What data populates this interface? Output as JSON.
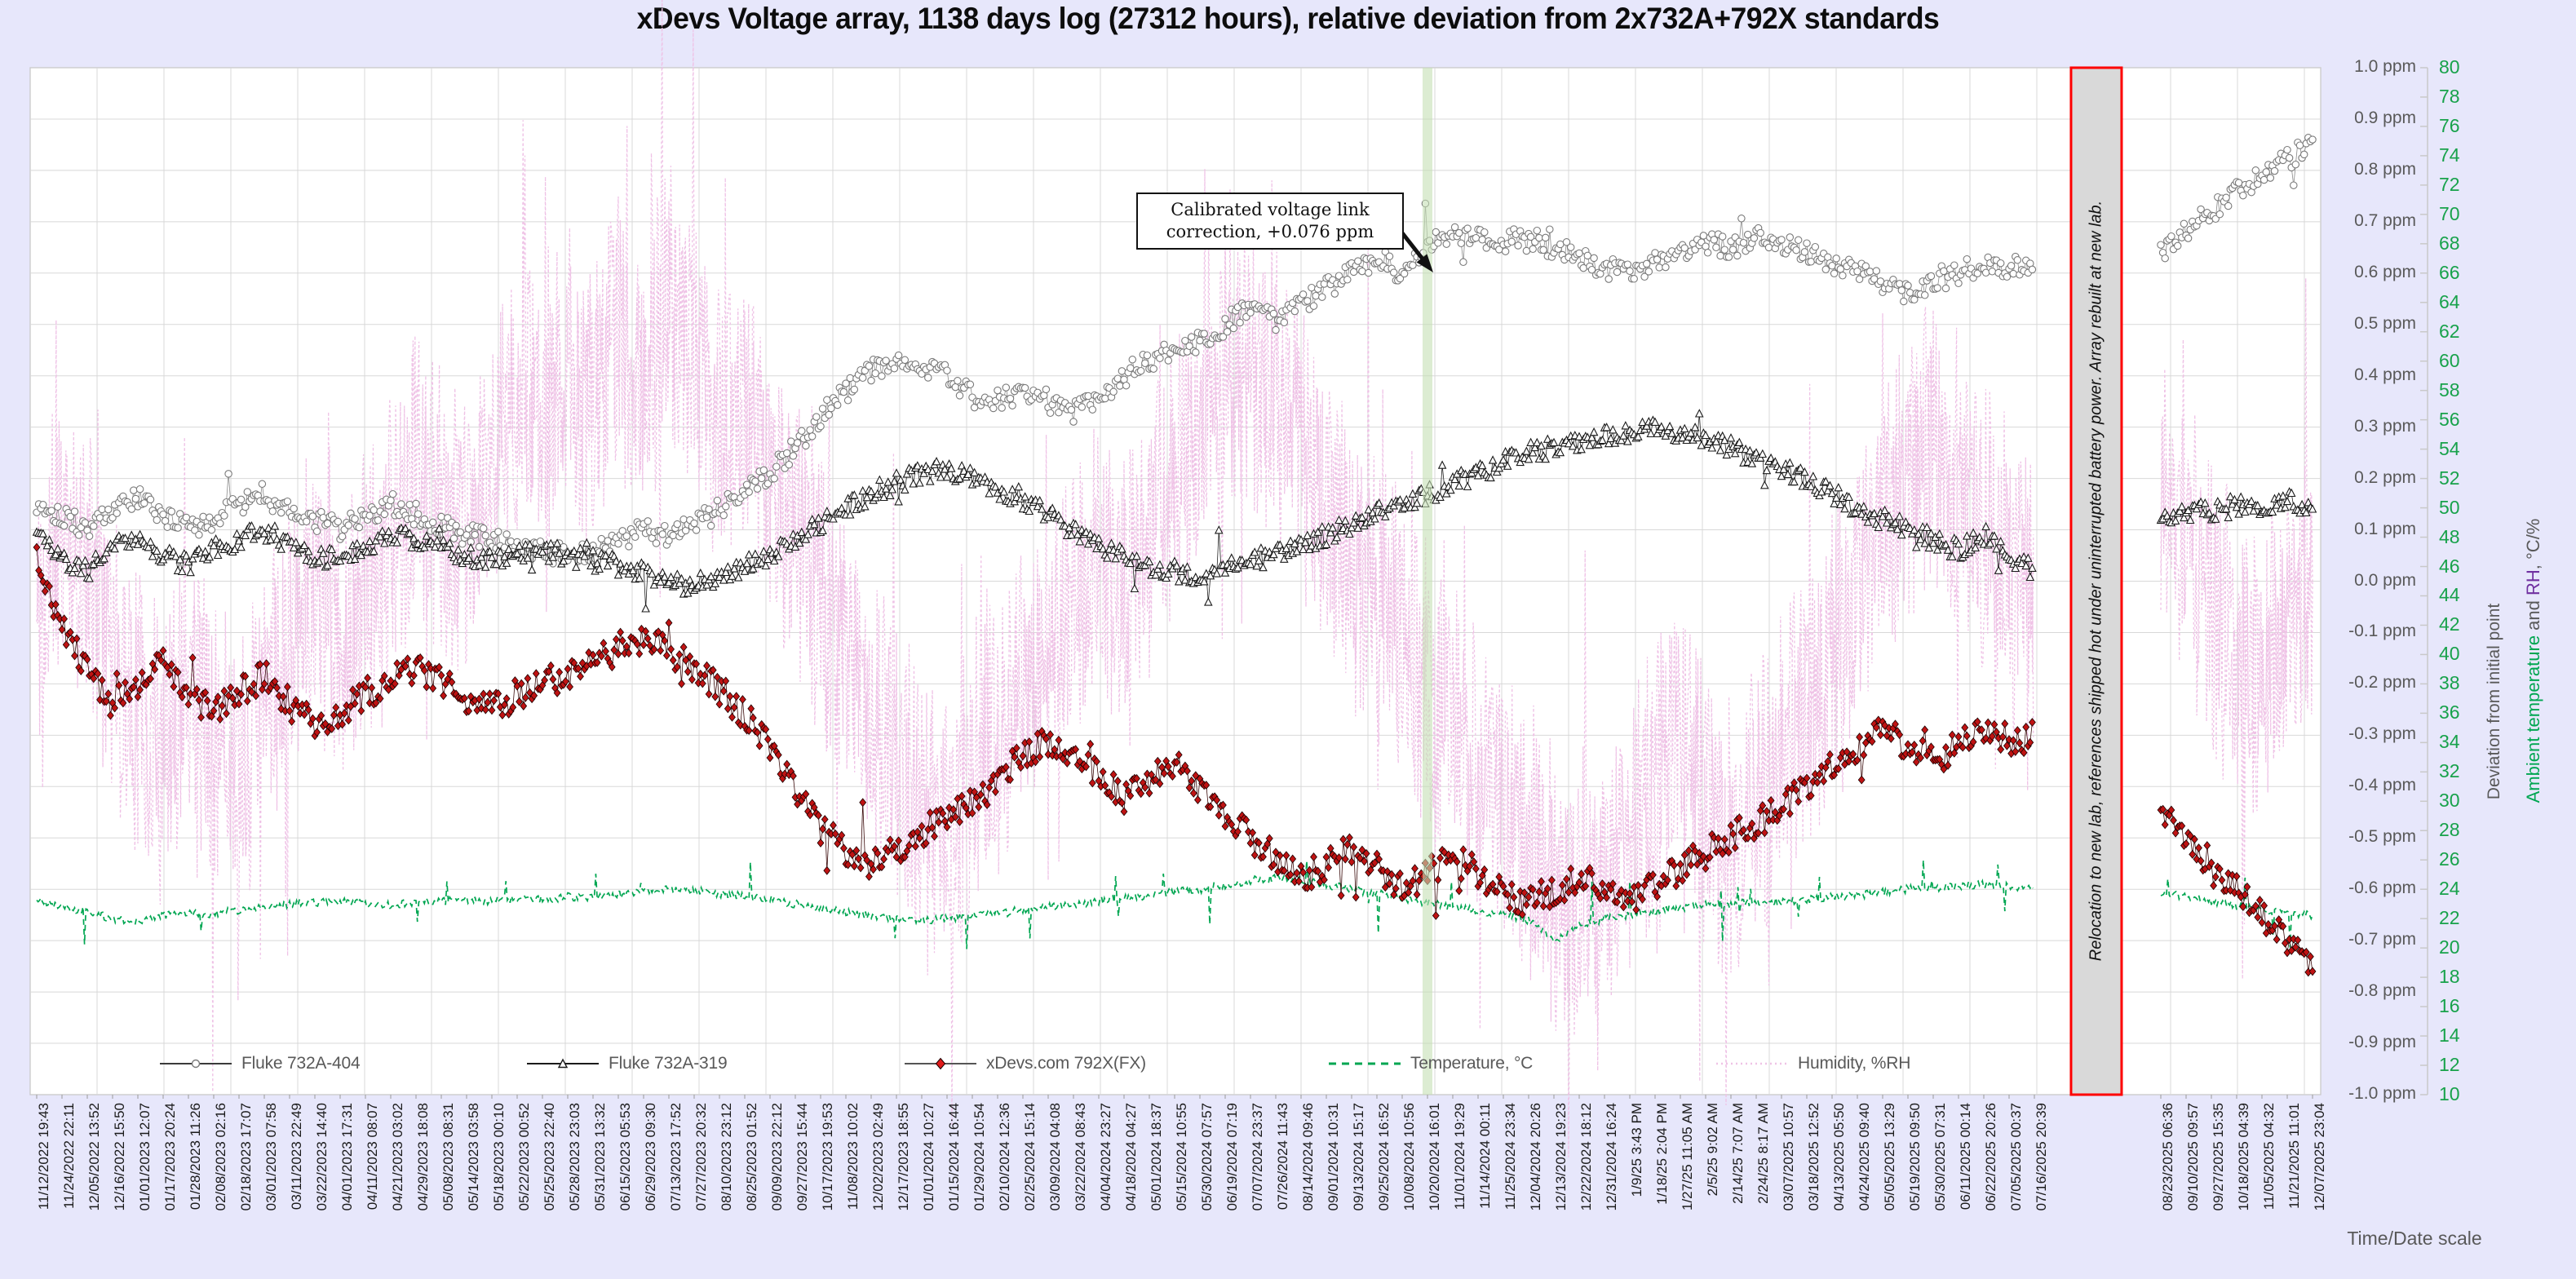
{
  "title": "xDevs Voltage array, 1138 days log (27312 hours), relative deviation from 2x732A+792X standards",
  "colors": {
    "background": "#e7e7fb",
    "plot_background": "#ffffff",
    "gridline": "#d8d8d8",
    "series_404": "#7a7a7a",
    "series_319": "#1a1a1a",
    "series_792x": "#bf1313",
    "temperature": "#00a651",
    "humidity": "#efc2e6",
    "event_band": "#c5e0b4",
    "relocation_band_bg": "#d9d9d9",
    "relocation_band_border": "#fe0000",
    "axis_text": "#595959",
    "temp_axis_text": "#18a24b",
    "rh_title": "#7030a0"
  },
  "right_axis": {
    "ppm_labels": [
      "1.0 ppm",
      "0.9 ppm",
      "0.8 ppm",
      "0.7 ppm",
      "0.6 ppm",
      "0.5 ppm",
      "0.4 ppm",
      "0.3 ppm",
      "0.2 ppm",
      "0.1 ppm",
      "0.0 ppm",
      "-0.1 ppm",
      "-0.2 ppm",
      "-0.3 ppm",
      "-0.4 ppm",
      "-0.5 ppm",
      "-0.6 ppm",
      "-0.7 ppm",
      "-0.8 ppm",
      "-0.9 ppm",
      "-1.0 ppm"
    ],
    "axis_title": "Deviation from initial point",
    "temp_rh_labels": [
      "80",
      "78",
      "76",
      "74",
      "72",
      "70",
      "68",
      "66",
      "64",
      "62",
      "60",
      "58",
      "56",
      "54",
      "52",
      "50",
      "48",
      "46",
      "44",
      "42",
      "40",
      "38",
      "36",
      "34",
      "32",
      "30",
      "28",
      "26",
      "24",
      "22",
      "20",
      "18",
      "16",
      "14",
      "12",
      "10"
    ],
    "temp_rh_title_parts": [
      {
        "text": "Ambient temperature",
        "color": "#00a651"
      },
      {
        "text": " and ",
        "color": "#595959"
      },
      {
        "text": "RH",
        "color": "#7030a0"
      },
      {
        "text": ", °C/%",
        "color": "#595959"
      }
    ]
  },
  "x_axis": {
    "title": "Time/Date scale",
    "gap_after_index": 79,
    "gap_slots": 4,
    "labels": [
      "11/12/2022 19:43",
      "11/24/2022 22:11",
      "12/05/2022 13:52",
      "12/16/2022 15:50",
      "01/01/2023 12:07",
      "01/17/2023 20:24",
      "01/28/2023 11:26",
      "02/08/2023 02:16",
      "02/18/2023 17:07",
      "03/01/2023 07:58",
      "03/11/2023 22:49",
      "03/22/2023 14:40",
      "04/01/2023 17:31",
      "04/11/2023 08:07",
      "04/21/2023 03:02",
      "04/29/2023 18:08",
      "05/08/2023 08:31",
      "05/14/2023 03:58",
      "05/18/2023 00:10",
      "05/22/2023 00:52",
      "05/25/2023 22:40",
      "05/28/2023 23:03",
      "05/31/2023 13:32",
      "06/15/2023 05:53",
      "06/29/2023 09:30",
      "07/13/2023 17:52",
      "07/27/2023 20:32",
      "08/10/2023 23:12",
      "08/25/2023 01:52",
      "09/09/2023 22:12",
      "09/27/2023 15:44",
      "10/17/2023 19:53",
      "11/08/2023 10:02",
      "12/02/2023 02:49",
      "12/17/2023 18:55",
      "01/01/2024 10:27",
      "01/15/2024 16:44",
      "01/29/2024 10:54",
      "02/10/2024 12:36",
      "02/25/2024 15:14",
      "03/09/2024 04:08",
      "03/22/2024 08:43",
      "04/04/2024 23:27",
      "04/18/2024 04:27",
      "05/01/2024 18:37",
      "05/15/2024 10:55",
      "05/30/2024 07:57",
      "06/19/2024 07:19",
      "07/07/2024 23:37",
      "07/26/2024 11:43",
      "08/14/2024 09:46",
      "09/01/2024 10:31",
      "09/13/2024 15:17",
      "09/25/2024 16:52",
      "10/08/2024 10:56",
      "10/20/2024 16:01",
      "11/01/2024 19:29",
      "11/14/2024 00:11",
      "11/25/2024 23:34",
      "12/04/2024 20:26",
      "12/13/2024 19:23",
      "12/22/2024 18:12",
      "12/31/2024 16:24",
      "1/9/25 3:43 PM",
      "1/18/25 2:04 PM",
      "1/27/25 11:05 AM",
      "2/5/25 9:02 AM",
      "2/14/25 7:07 AM",
      "2/24/25 8:17 AM",
      "03/07/2025 10:57",
      "03/18/2025 12:52",
      "04/13/2025 05:50",
      "04/24/2025 09:40",
      "05/05/2025 13:29",
      "05/19/2025 09:50",
      "05/30/2025 07:31",
      "06/11/2025 00:14",
      "06/22/2025 20:26",
      "07/05/2025 00:37",
      "07/16/2025 20:39",
      "08/23/2025 06:36",
      "09/10/2025 09:57",
      "09/27/2025 15:35",
      "10/18/2025 04:39",
      "11/05/2025 04:32",
      "11/21/2025 11:01",
      "12/07/2025 23:04"
    ]
  },
  "legend": {
    "items": [
      {
        "label": "Fluke 732A-404",
        "marker": "circle-marker-icon"
      },
      {
        "label": "Fluke 732A-319",
        "marker": "triangle-marker-icon"
      },
      {
        "label": "xDevs.com 792X(FX)",
        "marker": "diamond-marker-icon"
      },
      {
        "label": "Temperature, °C",
        "marker": "green-dash-icon"
      },
      {
        "label": "Humidity, %RH",
        "marker": "pink-dot-icon"
      }
    ]
  },
  "annotations": {
    "callout": {
      "text": "Calibrated voltage link correction, +0.076 ppm"
    },
    "event_line": {
      "x_label": "10/20/2024 16:01",
      "index": 55
    },
    "relocation_band": {
      "text": "Relocation to new lab, references shipped hot under uninterrupted battery power. Array rebuilt at new lab."
    }
  },
  "chart_data": {
    "type": "line",
    "title": "xDevs Voltage array, 1138 days log (27312 hours), relative deviation from 2x732A+792X standards",
    "xlabel": "Time/Date scale",
    "ylabel_left": "",
    "ylabel_right_ppm": "Deviation from initial point",
    "ylabel_right_temp_rh": "Ambient temperature and RH, °C/%",
    "ylim_ppm": [
      -1.0,
      1.0
    ],
    "ylim_temp_rh": [
      10,
      80
    ],
    "grid": true,
    "legend_position": "bottom-inside",
    "event_line_index": 55,
    "data_gap_after_index": 79,
    "series": [
      {
        "name": "Fluke 732A-404",
        "axis": "ppm",
        "marker": "circle",
        "color": "#7a7a7a",
        "values": [
          0.15,
          0.13,
          0.1,
          0.14,
          0.16,
          0.13,
          0.1,
          0.12,
          0.15,
          0.17,
          0.14,
          0.12,
          0.1,
          0.13,
          0.15,
          0.13,
          0.11,
          0.09,
          0.08,
          0.07,
          0.06,
          0.05,
          0.06,
          0.08,
          0.1,
          0.09,
          0.11,
          0.14,
          0.17,
          0.21,
          0.26,
          0.32,
          0.37,
          0.41,
          0.43,
          0.42,
          0.4,
          0.36,
          0.35,
          0.37,
          0.35,
          0.33,
          0.36,
          0.4,
          0.43,
          0.45,
          0.47,
          0.5,
          0.53,
          0.51,
          0.54,
          0.57,
          0.6,
          0.63,
          0.6,
          0.66,
          0.68,
          0.67,
          0.66,
          0.67,
          0.65,
          0.63,
          0.61,
          0.6,
          0.62,
          0.64,
          0.66,
          0.65,
          0.67,
          0.66,
          0.64,
          0.62,
          0.6,
          0.58,
          0.56,
          0.58,
          0.6,
          0.62,
          0.61,
          0.62,
          0.64,
          0.68,
          0.72,
          0.76,
          0.79,
          0.82,
          0.86
        ]
      },
      {
        "name": "Fluke 732A-319",
        "axis": "ppm",
        "marker": "triangle",
        "color": "#1a1a1a",
        "values": [
          0.11,
          0.04,
          0.02,
          0.06,
          0.09,
          0.05,
          0.03,
          0.06,
          0.08,
          0.1,
          0.07,
          0.05,
          0.04,
          0.07,
          0.09,
          0.08,
          0.06,
          0.05,
          0.04,
          0.05,
          0.06,
          0.05,
          0.04,
          0.03,
          0.02,
          0.0,
          -0.01,
          0.01,
          0.03,
          0.05,
          0.08,
          0.11,
          0.14,
          0.17,
          0.19,
          0.21,
          0.22,
          0.2,
          0.18,
          0.16,
          0.13,
          0.1,
          0.07,
          0.05,
          0.03,
          0.02,
          0.01,
          0.02,
          0.04,
          0.05,
          0.07,
          0.09,
          0.11,
          0.13,
          0.15,
          0.17,
          0.19,
          0.21,
          0.23,
          0.25,
          0.26,
          0.27,
          0.28,
          0.29,
          0.3,
          0.29,
          0.28,
          0.26,
          0.24,
          0.22,
          0.2,
          0.17,
          0.14,
          0.12,
          0.1,
          0.08,
          0.06,
          0.09,
          0.05,
          0.02,
          0.12,
          0.14,
          0.13,
          0.15,
          0.14,
          0.16,
          0.14
        ]
      },
      {
        "name": "xDevs.com 792X(FX)",
        "axis": "ppm",
        "marker": "diamond",
        "color": "#bf1313",
        "values": [
          0.04,
          -0.08,
          -0.18,
          -0.24,
          -0.2,
          -0.16,
          -0.22,
          -0.26,
          -0.22,
          -0.18,
          -0.24,
          -0.28,
          -0.26,
          -0.22,
          -0.19,
          -0.17,
          -0.2,
          -0.23,
          -0.25,
          -0.22,
          -0.2,
          -0.18,
          -0.16,
          -0.13,
          -0.11,
          -0.14,
          -0.17,
          -0.21,
          -0.26,
          -0.32,
          -0.4,
          -0.48,
          -0.53,
          -0.55,
          -0.52,
          -0.49,
          -0.46,
          -0.43,
          -0.39,
          -0.34,
          -0.31,
          -0.34,
          -0.38,
          -0.42,
          -0.39,
          -0.36,
          -0.4,
          -0.45,
          -0.5,
          -0.54,
          -0.58,
          -0.55,
          -0.52,
          -0.56,
          -0.6,
          -0.57,
          -0.54,
          -0.57,
          -0.6,
          -0.63,
          -0.6,
          -0.58,
          -0.6,
          -0.62,
          -0.59,
          -0.56,
          -0.53,
          -0.5,
          -0.47,
          -0.44,
          -0.4,
          -0.36,
          -0.32,
          -0.29,
          -0.32,
          -0.35,
          -0.32,
          -0.29,
          -0.31,
          -0.3,
          -0.44,
          -0.5,
          -0.55,
          -0.6,
          -0.65,
          -0.7,
          -0.76
        ]
      },
      {
        "name": "Temperature, °C",
        "axis": "temp_rh",
        "style": "dashed",
        "color": "#00a651",
        "values": [
          23.3,
          22.8,
          22.5,
          22.0,
          21.8,
          22.2,
          22.4,
          22.3,
          22.6,
          22.8,
          23.0,
          23.1,
          23.2,
          23.0,
          22.9,
          23.1,
          23.2,
          23.3,
          23.2,
          23.4,
          23.3,
          23.5,
          23.4,
          23.6,
          23.8,
          24.0,
          23.9,
          23.7,
          23.5,
          23.3,
          23.0,
          22.7,
          22.4,
          22.2,
          22.0,
          21.9,
          22.0,
          22.2,
          22.4,
          22.6,
          22.8,
          23.0,
          23.2,
          23.4,
          23.6,
          23.8,
          24.0,
          24.3,
          24.6,
          24.8,
          24.6,
          24.3,
          24.0,
          23.7,
          23.4,
          23.1,
          22.8,
          22.5,
          22.2,
          21.9,
          20.5,
          21.5,
          22.0,
          22.3,
          22.5,
          22.7,
          22.9,
          23.0,
          23.1,
          23.2,
          23.3,
          23.5,
          23.6,
          23.8,
          24.0,
          24.1,
          24.2,
          24.3,
          24.2,
          24.1,
          23.8,
          23.5,
          23.2,
          22.9,
          22.6,
          22.4,
          22.2
        ]
      },
      {
        "name": "Humidity, %RH",
        "axis": "temp_rh",
        "style": "dotted",
        "color": "#efc2e6",
        "values": [
          42,
          50,
          46,
          40,
          36,
          33,
          38,
          35,
          32,
          36,
          42,
          45,
          40,
          44,
          48,
          52,
          50,
          47,
          53,
          58,
          55,
          60,
          57,
          62,
          58,
          64,
          60,
          55,
          58,
          52,
          48,
          44,
          40,
          36,
          33,
          30,
          28,
          31,
          34,
          37,
          40,
          43,
          46,
          44,
          48,
          52,
          55,
          58,
          60,
          57,
          54,
          50,
          47,
          44,
          41,
          38,
          35,
          32,
          29,
          27,
          24,
          22,
          25,
          28,
          31,
          34,
          30,
          27,
          30,
          33,
          36,
          40,
          44,
          48,
          52,
          55,
          52,
          49,
          46,
          43,
          50,
          47,
          44,
          41,
          38,
          42,
          45
        ]
      }
    ]
  }
}
